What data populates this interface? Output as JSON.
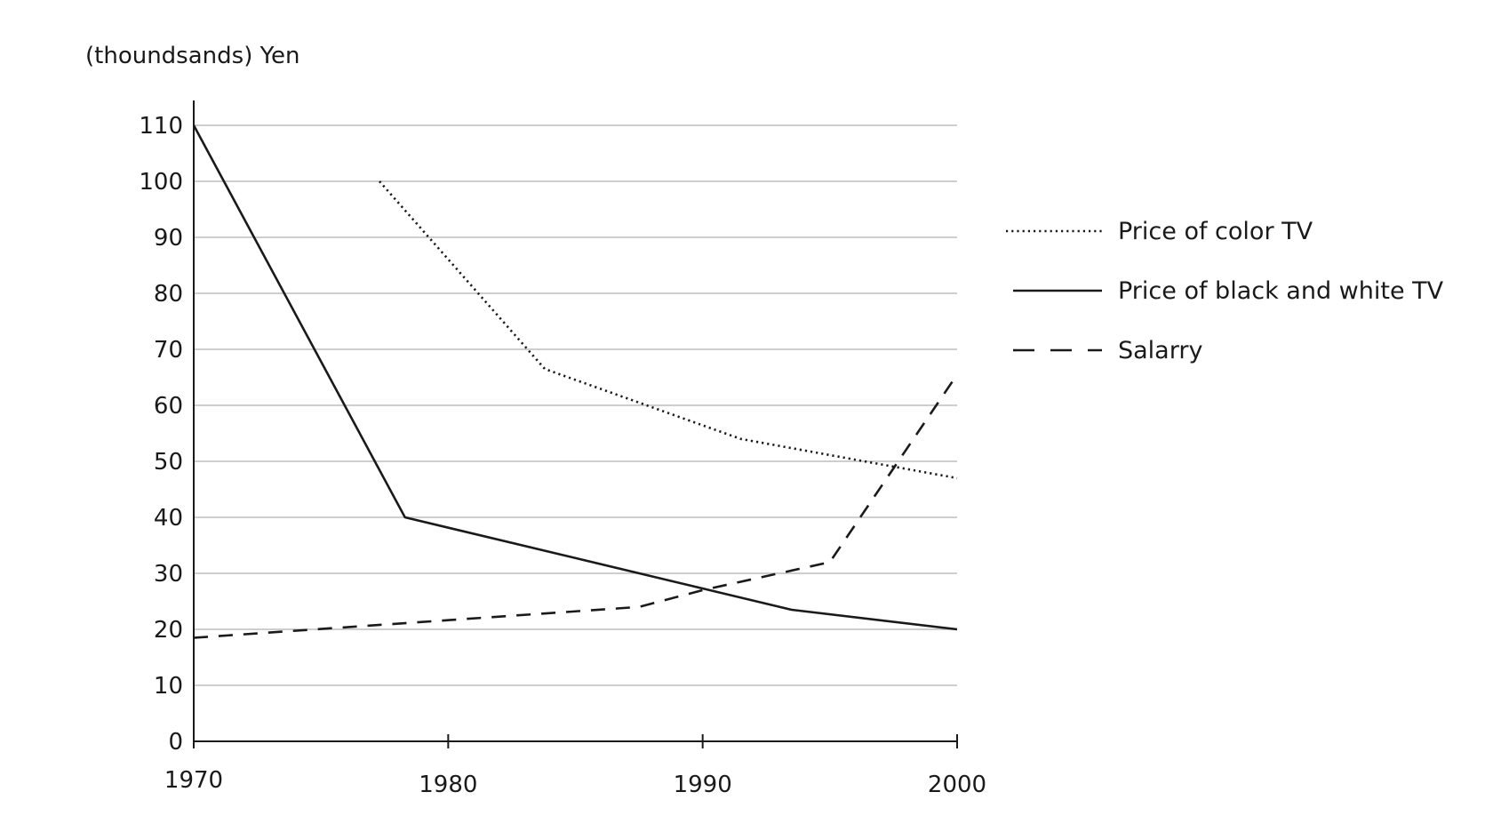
{
  "chart_data": {
    "type": "line",
    "title": "",
    "xlabel": "",
    "ylabel": "(thoundsands) Yen",
    "xlim": [
      1970,
      2000
    ],
    "ylim": [
      0,
      110
    ],
    "x_ticks": [
      1970,
      1980,
      1990,
      2000
    ],
    "y_ticks": [
      0,
      10,
      20,
      30,
      40,
      50,
      60,
      70,
      80,
      90,
      100,
      110
    ],
    "grid": true,
    "legend_position": "right",
    "series": [
      {
        "name": "Price of color TV",
        "style": "dotted",
        "color": "#1a1a1a",
        "points": [
          [
            1977.3,
            100
          ],
          [
            1983.8,
            66.5
          ],
          [
            1991.5,
            54
          ],
          [
            2000,
            47
          ]
        ]
      },
      {
        "name": "Price of black and white TV",
        "style": "solid",
        "color": "#1a1a1a",
        "points": [
          [
            1970,
            110
          ],
          [
            1978.3,
            40
          ],
          [
            1993.5,
            23.5
          ],
          [
            2000,
            20
          ]
        ]
      },
      {
        "name": "Salarry",
        "style": "dashed",
        "color": "#1a1a1a",
        "points": [
          [
            1970,
            18.5
          ],
          [
            1987.5,
            24
          ],
          [
            1990,
            27
          ],
          [
            1995,
            32
          ],
          [
            2000,
            65.5
          ]
        ]
      }
    ]
  }
}
